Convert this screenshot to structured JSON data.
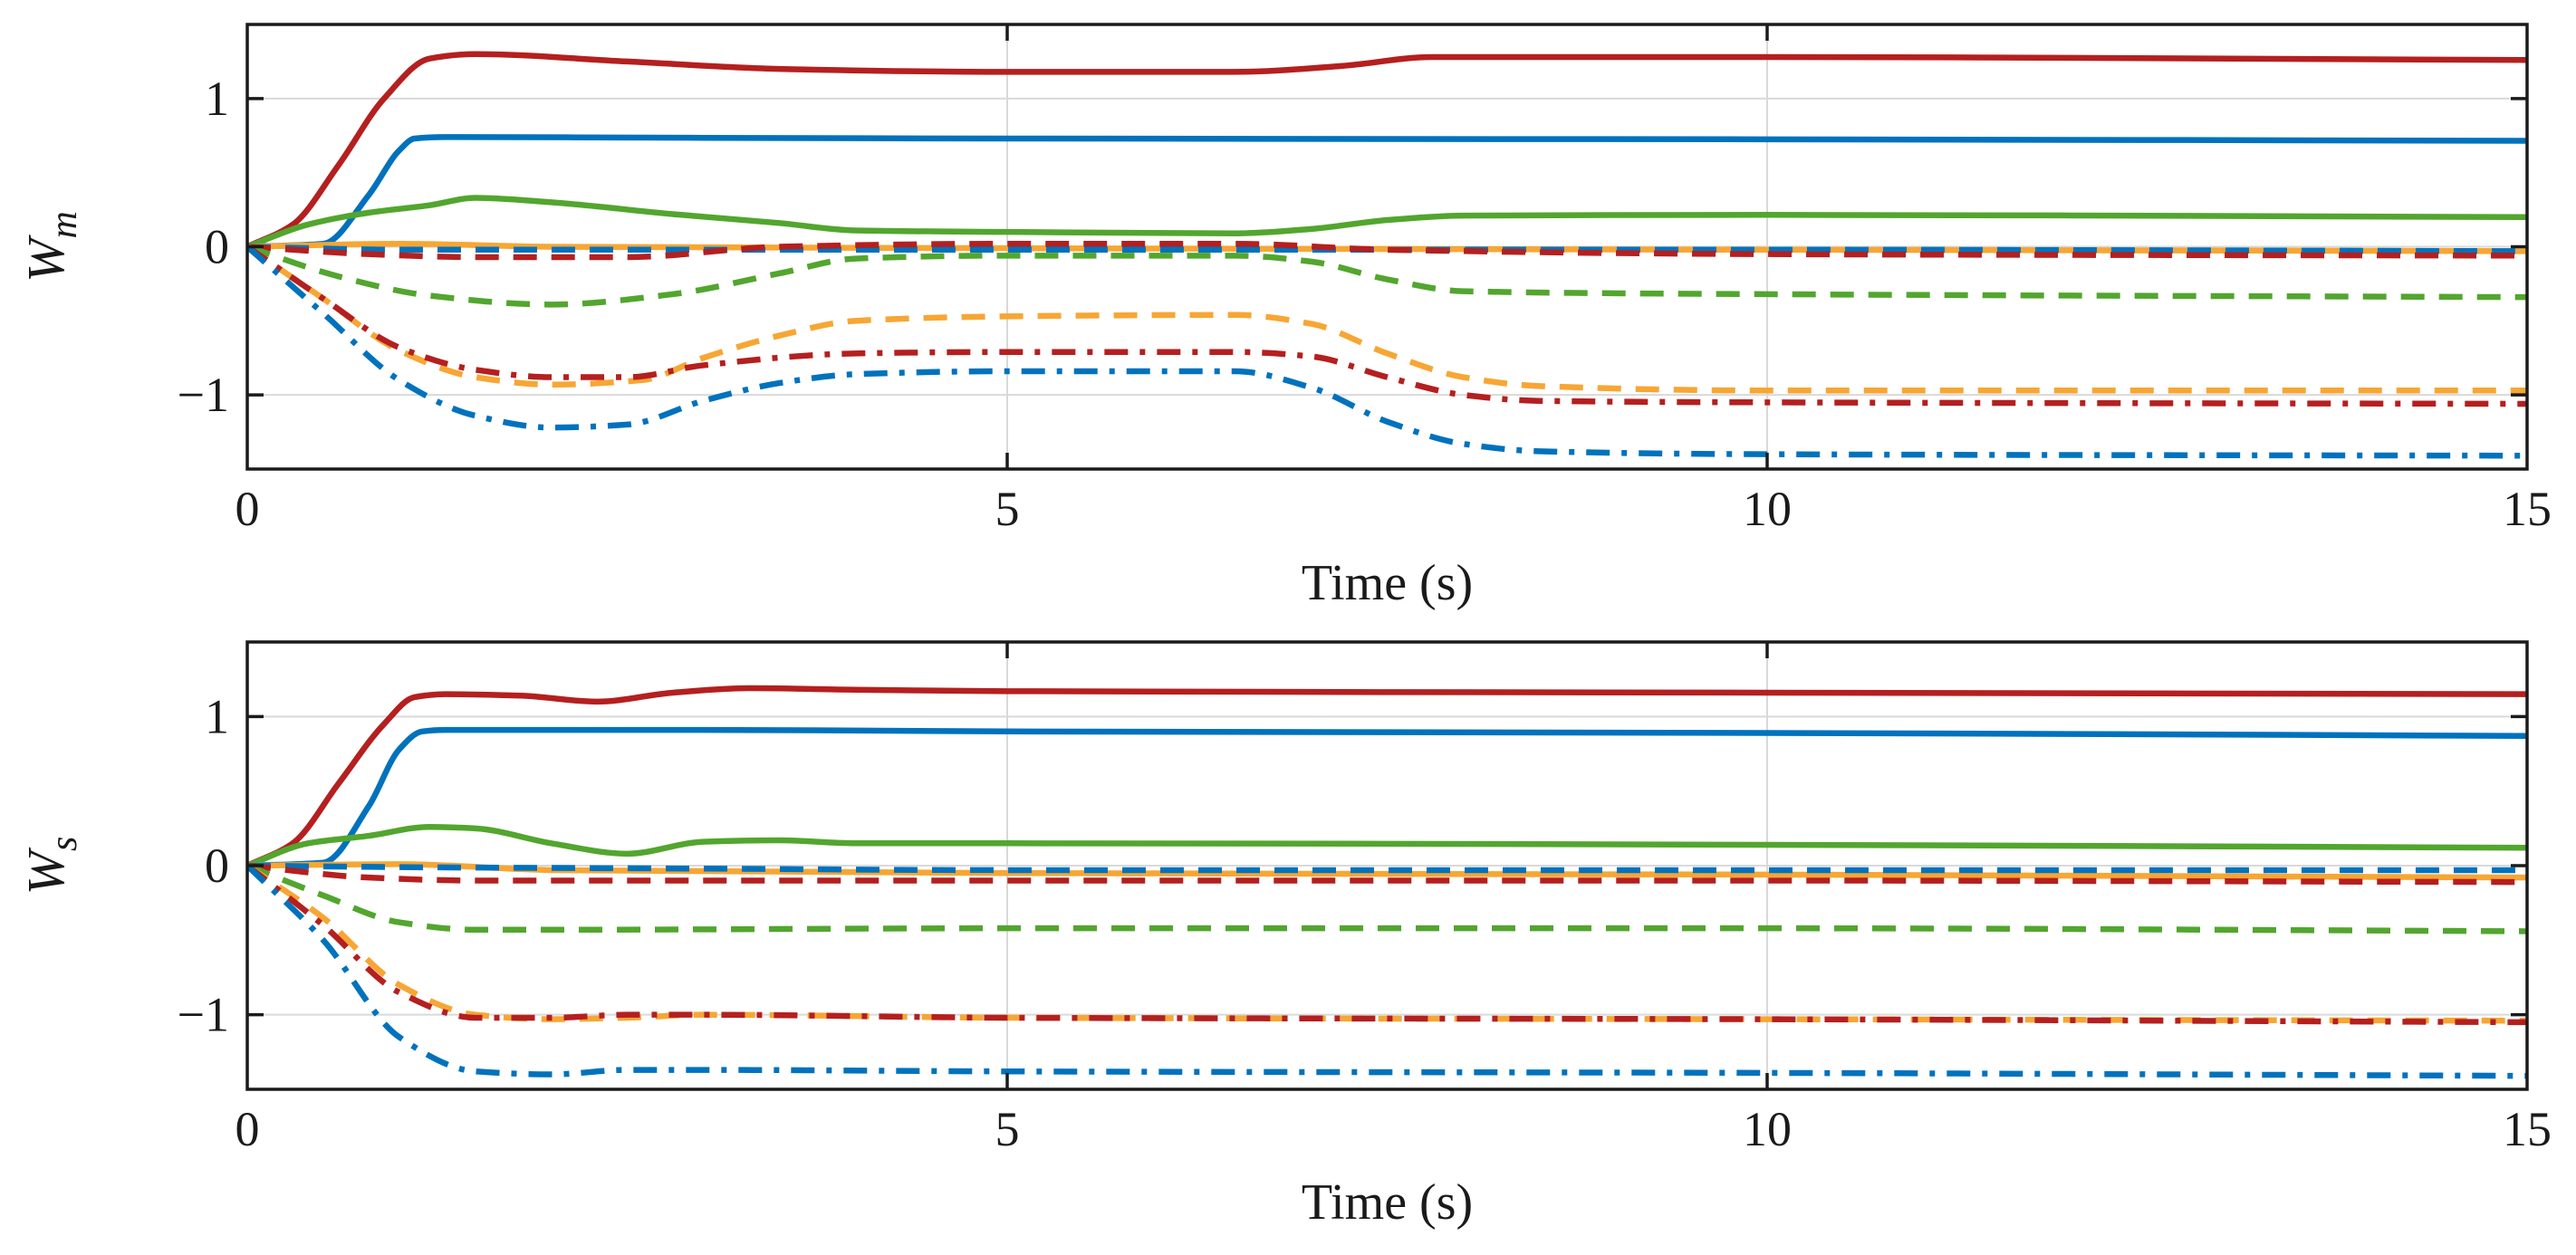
{
  "chart_data": [
    {
      "type": "line",
      "ylabel": "W",
      "ylabel_sub": "m",
      "xlabel": "Time (s)",
      "xlim": [
        0,
        15
      ],
      "ylim": [
        -1.5,
        1.5
      ],
      "xticks": [
        0,
        5,
        10,
        15
      ],
      "xtick_labels": [
        "0",
        "5",
        "10",
        "15"
      ],
      "yticks": [
        -1,
        0,
        1
      ],
      "ytick_labels": [
        "−1",
        "0",
        "1"
      ],
      "grid": true,
      "series": [
        {
          "name": "blue-solid",
          "color": "#0072BD",
          "dash": "solid",
          "x": [
            0,
            0.5,
            0.8,
            1.0,
            1.1,
            1.3,
            3,
            5,
            10,
            15
          ],
          "y": [
            0,
            0.02,
            0.35,
            0.65,
            0.73,
            0.74,
            0.735,
            0.73,
            0.725,
            0.715
          ]
        },
        {
          "name": "red-solid",
          "color": "#B51F1F",
          "dash": "solid",
          "x": [
            0,
            0.3,
            0.6,
            0.9,
            1.2,
            1.5,
            2.5,
            3.5,
            5,
            6.5,
            7.2,
            7.8,
            10,
            15
          ],
          "y": [
            0,
            0.15,
            0.55,
            1.0,
            1.27,
            1.3,
            1.25,
            1.2,
            1.18,
            1.18,
            1.22,
            1.28,
            1.28,
            1.26
          ]
        },
        {
          "name": "green-solid",
          "color": "#52A62E",
          "dash": "solid",
          "x": [
            0,
            0.4,
            0.8,
            1.2,
            1.5,
            2,
            2.8,
            3.5,
            4,
            5,
            6.5,
            7,
            7.5,
            8,
            10,
            15
          ],
          "y": [
            0,
            0.15,
            0.23,
            0.28,
            0.33,
            0.3,
            0.22,
            0.16,
            0.11,
            0.1,
            0.09,
            0.12,
            0.18,
            0.21,
            0.215,
            0.2
          ]
        },
        {
          "name": "orange-solid",
          "color": "#F7A634",
          "dash": "solid",
          "x": [
            0,
            1,
            2,
            5,
            10,
            15
          ],
          "y": [
            0,
            0.02,
            0.0,
            -0.01,
            -0.02,
            -0.03
          ]
        },
        {
          "name": "blue-dash",
          "color": "#0072BD",
          "dash": "dash",
          "x": [
            0,
            1,
            3,
            5,
            10,
            15
          ],
          "y": [
            0,
            -0.02,
            -0.02,
            -0.02,
            -0.02,
            -0.03
          ]
        },
        {
          "name": "red-dash",
          "color": "#B51F1F",
          "dash": "dash",
          "x": [
            0,
            0.8,
            1.5,
            2.5,
            3.5,
            5,
            6.5,
            7.5,
            10,
            15
          ],
          "y": [
            0,
            -0.05,
            -0.07,
            -0.07,
            0.0,
            0.02,
            0.02,
            -0.02,
            -0.05,
            -0.06
          ]
        },
        {
          "name": "green-dash",
          "color": "#52A62E",
          "dash": "dash",
          "x": [
            0,
            0.6,
            1.2,
            2,
            2.8,
            3.5,
            4,
            5,
            6.5,
            7,
            7.5,
            8,
            10,
            15
          ],
          "y": [
            0,
            -0.2,
            -0.33,
            -0.39,
            -0.32,
            -0.18,
            -0.08,
            -0.06,
            -0.06,
            -0.1,
            -0.22,
            -0.3,
            -0.32,
            -0.34
          ]
        },
        {
          "name": "orange-dash",
          "color": "#F7A634",
          "dash": "dash",
          "x": [
            0,
            0.5,
            1,
            1.5,
            2,
            2.6,
            3,
            3.5,
            4,
            5,
            6.5,
            7,
            7.5,
            8,
            8.5,
            10,
            15
          ],
          "y": [
            0,
            -0.35,
            -0.7,
            -0.88,
            -0.93,
            -0.9,
            -0.75,
            -0.6,
            -0.5,
            -0.47,
            -0.46,
            -0.52,
            -0.72,
            -0.88,
            -0.94,
            -0.97,
            -0.97
          ]
        },
        {
          "name": "red-dashdot",
          "color": "#B51F1F",
          "dash": "dashdot",
          "x": [
            0,
            0.5,
            1,
            1.5,
            2,
            2.5,
            3,
            4,
            5,
            6.5,
            7,
            7.5,
            8,
            8.5,
            10,
            15
          ],
          "y": [
            0,
            -0.35,
            -0.68,
            -0.83,
            -0.88,
            -0.88,
            -0.8,
            -0.72,
            -0.71,
            -0.71,
            -0.74,
            -0.88,
            -1.0,
            -1.04,
            -1.05,
            -1.06
          ]
        },
        {
          "name": "blue-dashdot",
          "color": "#0072BD",
          "dash": "dashdot",
          "x": [
            0,
            0.5,
            1,
            1.5,
            2,
            2.5,
            3,
            3.5,
            4,
            5,
            6.5,
            7,
            7.5,
            8,
            8.5,
            10,
            15
          ],
          "y": [
            0,
            -0.45,
            -0.9,
            -1.14,
            -1.22,
            -1.2,
            -1.04,
            -0.92,
            -0.86,
            -0.84,
            -0.84,
            -0.95,
            -1.18,
            -1.33,
            -1.38,
            -1.4,
            -1.41
          ]
        }
      ]
    },
    {
      "type": "line",
      "ylabel": "W",
      "ylabel_sub": "s",
      "xlabel": "Time (s)",
      "xlim": [
        0,
        15
      ],
      "ylim": [
        -1.5,
        1.5
      ],
      "xticks": [
        0,
        5,
        10,
        15
      ],
      "xtick_labels": [
        "0",
        "5",
        "10",
        "15"
      ],
      "yticks": [
        -1,
        0,
        1
      ],
      "ytick_labels": [
        "−1",
        "0",
        "1"
      ],
      "grid": true,
      "series": [
        {
          "name": "blue-solid",
          "color": "#0072BD",
          "dash": "solid",
          "x": [
            0,
            0.5,
            0.8,
            1.0,
            1.15,
            1.3,
            3,
            5,
            10,
            15
          ],
          "y": [
            0,
            0.02,
            0.4,
            0.78,
            0.9,
            0.91,
            0.91,
            0.9,
            0.89,
            0.87
          ]
        },
        {
          "name": "red-solid",
          "color": "#B51F1F",
          "dash": "solid",
          "x": [
            0,
            0.3,
            0.6,
            0.9,
            1.1,
            1.3,
            1.8,
            2.3,
            2.8,
            3.3,
            4,
            5,
            10,
            15
          ],
          "y": [
            0,
            0.15,
            0.55,
            0.95,
            1.13,
            1.15,
            1.14,
            1.1,
            1.16,
            1.19,
            1.18,
            1.17,
            1.16,
            1.15
          ]
        },
        {
          "name": "green-solid",
          "color": "#52A62E",
          "dash": "solid",
          "x": [
            0,
            0.4,
            0.8,
            1.2,
            1.5,
            2,
            2.5,
            3,
            3.5,
            4,
            5,
            10,
            15
          ],
          "y": [
            0,
            0.15,
            0.2,
            0.26,
            0.25,
            0.15,
            0.08,
            0.16,
            0.17,
            0.15,
            0.15,
            0.14,
            0.12
          ]
        },
        {
          "name": "orange-solid",
          "color": "#F7A634",
          "dash": "solid",
          "x": [
            0,
            1,
            2,
            5,
            10,
            15
          ],
          "y": [
            0,
            0.01,
            -0.03,
            -0.05,
            -0.06,
            -0.08
          ]
        },
        {
          "name": "blue-dash",
          "color": "#0072BD",
          "dash": "dash",
          "x": [
            0,
            1,
            3,
            5,
            10,
            15
          ],
          "y": [
            0,
            -0.01,
            -0.02,
            -0.03,
            -0.03,
            -0.03
          ]
        },
        {
          "name": "red-dash",
          "color": "#B51F1F",
          "dash": "dash",
          "x": [
            0,
            0.8,
            1.5,
            3,
            5,
            10,
            15
          ],
          "y": [
            0,
            -0.08,
            -0.1,
            -0.1,
            -0.1,
            -0.1,
            -0.11
          ]
        },
        {
          "name": "green-dash",
          "color": "#52A62E",
          "dash": "dash",
          "x": [
            0,
            0.5,
            1,
            1.5,
            2,
            5,
            10,
            15
          ],
          "y": [
            0,
            -0.2,
            -0.38,
            -0.43,
            -0.43,
            -0.42,
            -0.42,
            -0.44
          ]
        },
        {
          "name": "orange-dash",
          "color": "#F7A634",
          "dash": "dash",
          "x": [
            0,
            0.5,
            1,
            1.5,
            2,
            2.5,
            3,
            5,
            10,
            15
          ],
          "y": [
            0,
            -0.35,
            -0.8,
            -1.0,
            -1.03,
            -1.02,
            -1.0,
            -1.02,
            -1.03,
            -1.04
          ]
        },
        {
          "name": "red-dashdot",
          "color": "#B51F1F",
          "dash": "dashdot",
          "x": [
            0,
            0.5,
            1,
            1.5,
            2,
            2.5,
            3,
            5,
            10,
            15
          ],
          "y": [
            0,
            -0.4,
            -0.85,
            -1.02,
            -1.02,
            -1.0,
            -1.0,
            -1.02,
            -1.03,
            -1.05
          ]
        },
        {
          "name": "blue-dashdot",
          "color": "#0072BD",
          "dash": "dashdot",
          "x": [
            0,
            0.5,
            1,
            1.5,
            2,
            2.5,
            3,
            5,
            10,
            15
          ],
          "y": [
            0,
            -0.5,
            -1.15,
            -1.38,
            -1.4,
            -1.37,
            -1.37,
            -1.38,
            -1.39,
            -1.41
          ]
        }
      ]
    }
  ]
}
